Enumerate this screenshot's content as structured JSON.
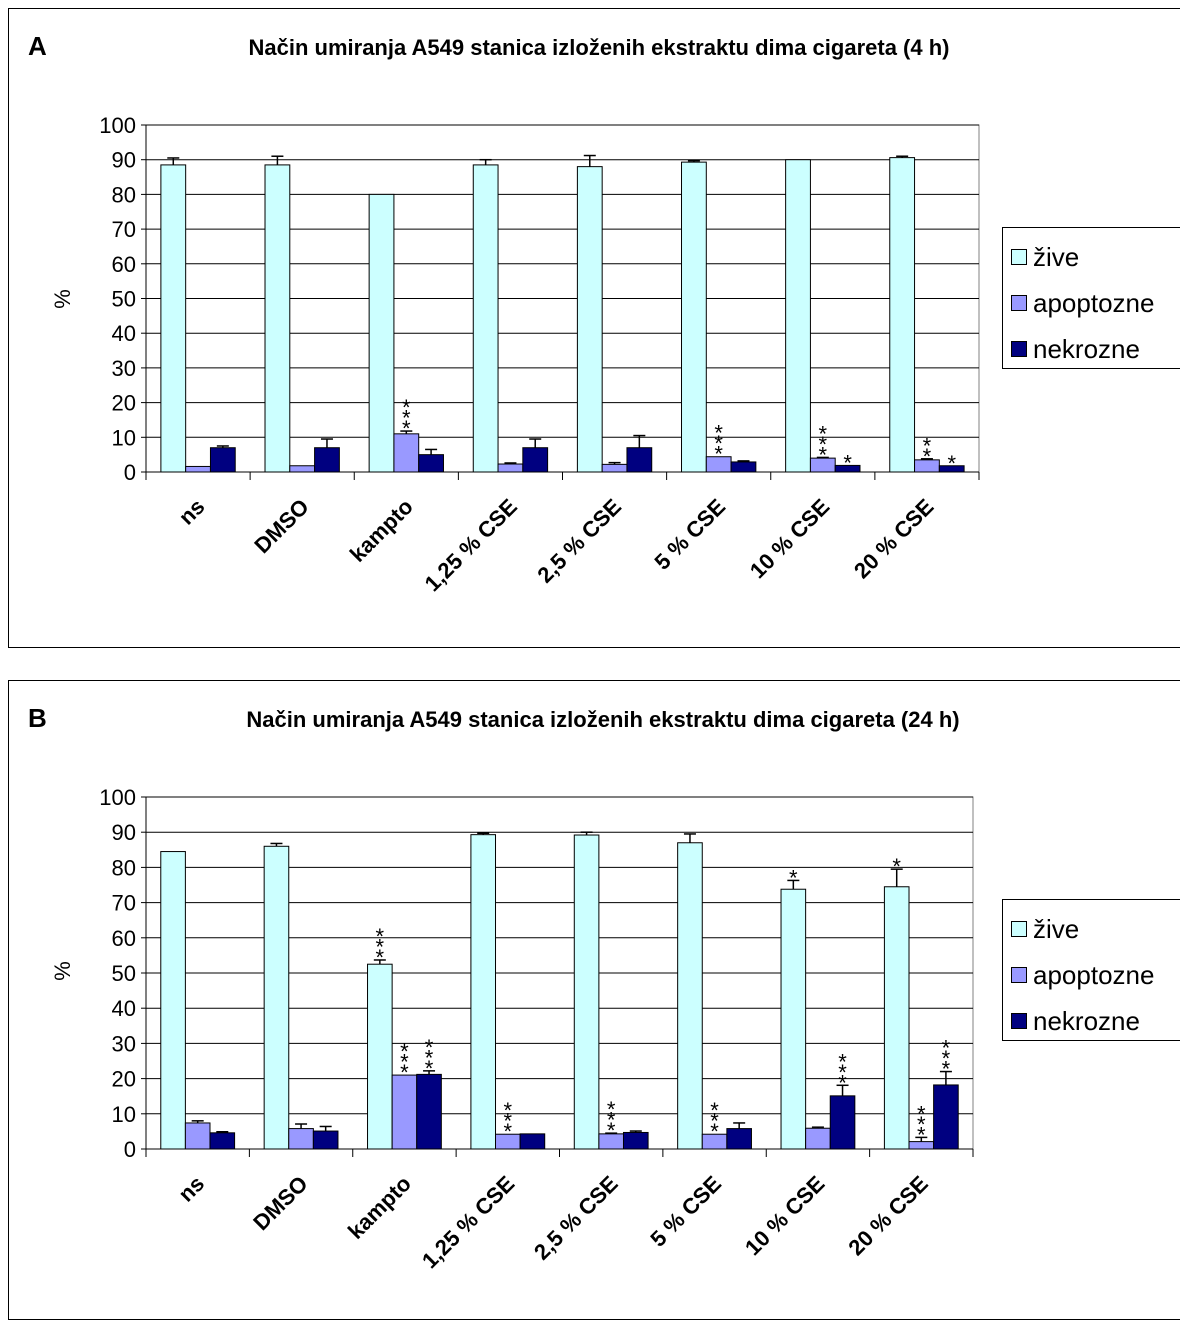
{
  "colors": {
    "zive": "#CCFFFF",
    "apoptozne": "#9999FF",
    "nekrozne": "#000080"
  },
  "chart_data": [
    {
      "type": "bar",
      "panel_label": "A",
      "title": "Način umiranja A549 stanica izloženih ekstraktu dima cigareta (4 h)",
      "ylabel": "%",
      "ylim": [
        0,
        100
      ],
      "yticks": [
        0,
        10,
        20,
        30,
        40,
        50,
        60,
        70,
        80,
        90,
        100
      ],
      "grid": true,
      "legend_position": "right",
      "categories": [
        "ns",
        "DMSO",
        "kampto",
        "1,25 % CSE",
        "2,5 % CSE",
        "5 % CSE",
        "10 % CSE",
        "20 % CSE"
      ],
      "series": [
        {
          "name": "žive",
          "values": [
            88.5,
            88.5,
            80,
            88.5,
            88,
            89.3,
            90,
            90.6
          ],
          "errors": [
            2,
            2.5,
            0,
            1.5,
            3.2,
            0.4,
            0,
            0.4
          ],
          "sig": [
            "",
            "",
            "",
            "",
            "",
            "",
            "",
            ""
          ]
        },
        {
          "name": "apoptozne",
          "values": [
            1.6,
            1.8,
            11,
            2.3,
            2.2,
            4.4,
            4,
            3.5
          ],
          "errors": [
            0,
            0,
            0.8,
            0.3,
            0.5,
            0,
            0.2,
            0.3
          ],
          "sig": [
            "",
            "",
            "***",
            "",
            "",
            "***",
            "***",
            "**"
          ]
        },
        {
          "name": "nekrozne",
          "values": [
            7,
            7,
            5,
            7,
            7,
            2.9,
            1.9,
            1.8
          ],
          "errors": [
            0.5,
            2.5,
            1.5,
            2.5,
            3.5,
            0.3,
            0,
            0
          ],
          "sig": [
            "",
            "",
            "",
            "",
            "",
            "",
            "*",
            "*"
          ]
        }
      ]
    },
    {
      "type": "bar",
      "panel_label": "B",
      "title": "Način umiranja A549 stanica izloženih ekstraktu dima cigareta (24 h)",
      "ylabel": "%",
      "ylim": [
        0,
        100
      ],
      "yticks": [
        0,
        10,
        20,
        30,
        40,
        50,
        60,
        70,
        80,
        90,
        100
      ],
      "grid": true,
      "legend_position": "right",
      "categories": [
        "ns",
        "DMSO",
        "kampto",
        "1,25 % CSE",
        "2,5 % CSE",
        "5 % CSE",
        "10 % CSE",
        "20 % CSE"
      ],
      "series": [
        {
          "name": "žive",
          "values": [
            84.5,
            86,
            52.5,
            89.3,
            89.2,
            87,
            73.8,
            74.5
          ],
          "errors": [
            0,
            0.8,
            1.2,
            0.4,
            0.8,
            2.5,
            2.5,
            5
          ],
          "sig": [
            "",
            "",
            "***",
            "",
            "",
            "",
            "*",
            "*"
          ]
        },
        {
          "name": "apoptozne",
          "values": [
            7.4,
            5.8,
            21,
            4.2,
            4.3,
            4.2,
            5.9,
            2.1
          ],
          "errors": [
            0.6,
            1.3,
            0,
            0,
            0.2,
            0,
            0.3,
            1.2
          ],
          "sig": [
            "",
            "",
            "***",
            "***",
            "***",
            "***",
            "",
            "***"
          ]
        },
        {
          "name": "nekrozne",
          "values": [
            4.6,
            5.1,
            21.2,
            4.3,
            4.7,
            5.8,
            15.1,
            18.2
          ],
          "errors": [
            0.3,
            1.3,
            1,
            0,
            0.4,
            1.6,
            3,
            3.8
          ],
          "sig": [
            "",
            "",
            "***",
            "",
            "",
            "",
            "***",
            "***"
          ]
        }
      ]
    }
  ]
}
